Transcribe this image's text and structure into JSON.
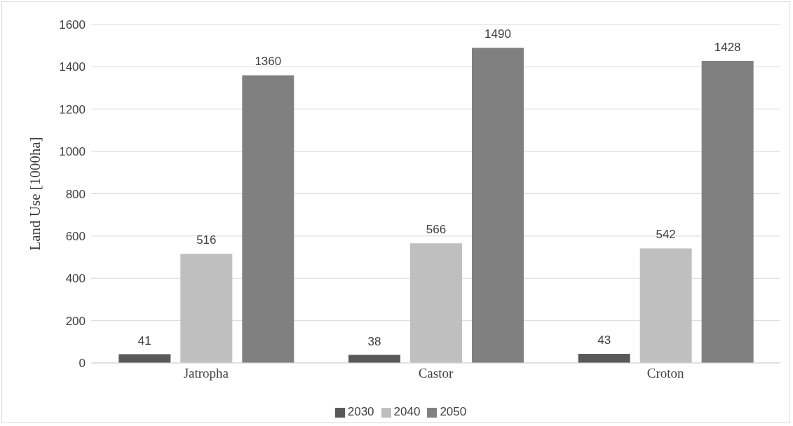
{
  "chart_data": {
    "type": "bar",
    "ylabel": "Land Use [1000ha]",
    "categories": [
      "Jatropha",
      "Castor",
      "Croton"
    ],
    "series": [
      {
        "name": "2030",
        "color": "#595959",
        "values": [
          41,
          38,
          43
        ]
      },
      {
        "name": "2040",
        "color": "#bfbfbf",
        "values": [
          516,
          566,
          542
        ]
      },
      {
        "name": "2050",
        "color": "#808080",
        "values": [
          1360,
          1490,
          1428
        ]
      }
    ],
    "ylim": [
      0,
      1600
    ],
    "yticks": [
      0,
      200,
      400,
      600,
      800,
      1000,
      1200,
      1400,
      1600
    ],
    "grid": "y",
    "legend": "bottom",
    "data_labels": true
  }
}
